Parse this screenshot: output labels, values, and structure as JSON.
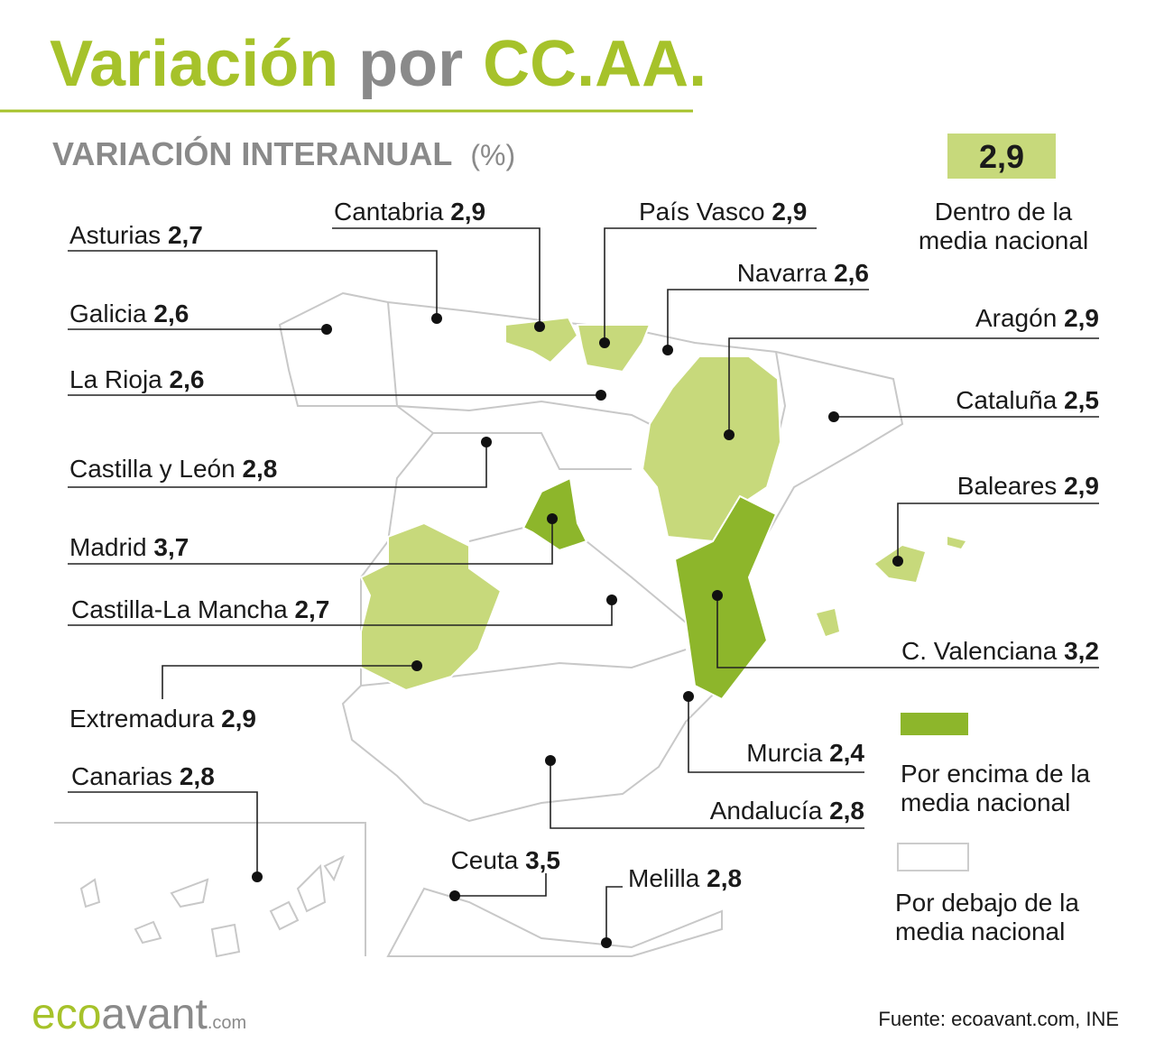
{
  "title": {
    "part1": "Variación",
    "part2": "por",
    "part3": "CC.AA."
  },
  "subtitle": "VARIACIÓN INTERANUAL",
  "unit": "(%)",
  "legend": {
    "reference_value": "2,9",
    "within": [
      "Dentro de la",
      "media nacional"
    ],
    "above": [
      "Por encima de la",
      "media nacional"
    ],
    "below": [
      "Por debajo de la",
      "media nacional"
    ]
  },
  "regions": [
    {
      "name": "Asturias",
      "value": "2,7"
    },
    {
      "name": "Galicia",
      "value": "2,6"
    },
    {
      "name": "La Rioja",
      "value": "2,6"
    },
    {
      "name": "Castilla y León",
      "value": "2,8"
    },
    {
      "name": "Madrid",
      "value": "3,7"
    },
    {
      "name": "Castilla-La Mancha",
      "value": "2,7"
    },
    {
      "name": "Extremadura",
      "value": "2,9"
    },
    {
      "name": "Canarias",
      "value": "2,8"
    },
    {
      "name": "Cantabria",
      "value": "2,9"
    },
    {
      "name": "País Vasco",
      "value": "2,9"
    },
    {
      "name": "Navarra",
      "value": "2,6"
    },
    {
      "name": "Aragón",
      "value": "2,9"
    },
    {
      "name": "Cataluña",
      "value": "2,5"
    },
    {
      "name": "Baleares",
      "value": "2,9"
    },
    {
      "name": "C. Valenciana",
      "value": "3,2"
    },
    {
      "name": "Murcia",
      "value": "2,4"
    },
    {
      "name": "Andalucía",
      "value": "2,8"
    },
    {
      "name": "Ceuta",
      "value": "3,5"
    },
    {
      "name": "Melilla",
      "value": "2,8"
    }
  ],
  "logo": {
    "part1": "eco",
    "part2": "avant",
    "part3": ".com"
  },
  "source": "Fuente: ecoavant.com, INE"
}
